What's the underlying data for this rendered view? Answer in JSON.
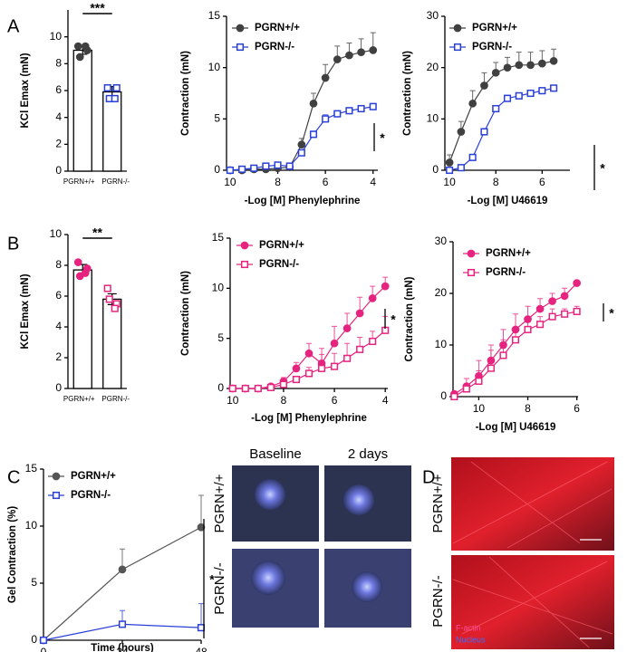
{
  "panel_labels": [
    "A",
    "B",
    "C",
    "D"
  ],
  "photos": {
    "columns": [
      "Baseline",
      "2 days"
    ],
    "rows": [
      "PGRN+/+",
      "PGRN-/-"
    ]
  },
  "staining": {
    "rows": [
      "PGRN+/+",
      "PGRN-/-"
    ],
    "legend": [
      "F-actin",
      "Nucleus"
    ]
  },
  "chart_data": [
    {
      "type": "bar",
      "ylabel": "KCl Emax (mN)",
      "categories": [
        "PGRN+/+",
        "PGRN-/-"
      ],
      "values": [
        9.0,
        5.9
      ],
      "errors": [
        0.3,
        0.4
      ],
      "points": [
        [
          9.3,
          9.0,
          8.5,
          9.3
        ],
        [
          6.2,
          6.2,
          5.4,
          5.4
        ]
      ],
      "point_colors": [
        "#404040",
        "#2a3fd6"
      ],
      "point_markers": [
        "circle",
        "square"
      ],
      "ylim": [
        0,
        12
      ],
      "yticks": [
        0,
        2,
        4,
        6,
        8,
        10
      ],
      "significance": "***"
    },
    {
      "type": "line",
      "xlabel": "-Log [M] Phenylephrine",
      "ylabel": "Contraction (mN)",
      "x": [
        10,
        9.5,
        9,
        8.5,
        8,
        7.5,
        7,
        6.5,
        6,
        5.5,
        5,
        4.5,
        4
      ],
      "series": [
        {
          "name": "PGRN+/+",
          "color": "#404040",
          "marker": "circle",
          "filled": true,
          "values": [
            0,
            0,
            0.1,
            0.1,
            0.2,
            0.3,
            2.5,
            6.5,
            9.0,
            10.8,
            11.2,
            11.5,
            11.7
          ],
          "errors": [
            0,
            0,
            0,
            0.1,
            0.1,
            0.3,
            0.6,
            1.0,
            1.3,
            1.3,
            1.2,
            1.3,
            1.7
          ]
        },
        {
          "name": "PGRN-/-",
          "color": "#2a3fd6",
          "marker": "square",
          "filled": false,
          "values": [
            0,
            0.1,
            0.2,
            0.4,
            0.5,
            0.4,
            1.7,
            3.5,
            5.0,
            5.5,
            5.8,
            6.0,
            6.2
          ],
          "errors": [
            0,
            0,
            0,
            0,
            0,
            0,
            0.2,
            0.3,
            0.4,
            0.3,
            0.3,
            0.3,
            0.3
          ]
        }
      ],
      "xlim": [
        10.15,
        3.8
      ],
      "xticks": [
        10,
        8,
        6,
        4
      ],
      "ylim": [
        0,
        15
      ],
      "yticks": [
        0,
        5,
        10,
        15
      ],
      "significance": "*"
    },
    {
      "type": "line",
      "xlabel": "-Log [M] U46619",
      "ylabel": "Contraction (mN)",
      "x": [
        10,
        9.5,
        9,
        8.5,
        8,
        7.5,
        7,
        6.5,
        6,
        5.5
      ],
      "series": [
        {
          "name": "PGRN+/+",
          "color": "#404040",
          "marker": "circle",
          "filled": true,
          "values": [
            1.5,
            7.5,
            13,
            16.5,
            19,
            20,
            20.5,
            20.5,
            20.8,
            21.3
          ],
          "errors": [
            1.5,
            2,
            2.5,
            2.5,
            2,
            2,
            2.5,
            2.5,
            2.5,
            2.3
          ]
        },
        {
          "name": "PGRN-/-",
          "color": "#2a3fd6",
          "marker": "square",
          "filled": false,
          "values": [
            0,
            0.5,
            2.5,
            7.5,
            12,
            14,
            14.5,
            15,
            15.5,
            16
          ],
          "errors": [
            0,
            0,
            0.3,
            0.5,
            0.5,
            0.6,
            0.5,
            0.5,
            0.5,
            0.5
          ]
        }
      ],
      "xlim": [
        10.2,
        4.8
      ],
      "xticks": [
        10,
        8,
        6
      ],
      "ylim": [
        0,
        30
      ],
      "yticks": [
        0,
        10,
        20,
        30
      ],
      "significance": "*"
    },
    {
      "type": "bar",
      "ylabel": "KCl Emax (mN)",
      "categories": [
        "PGRN+/+",
        "PGRN-/-"
      ],
      "values": [
        7.7,
        5.8
      ],
      "errors": [
        0.35,
        0.35
      ],
      "points": [
        [
          8.2,
          7.8,
          7.3,
          7.5
        ],
        [
          6.5,
          5.5,
          5.8,
          5.2
        ]
      ],
      "point_colors": [
        "#e6247f",
        "#e6247f"
      ],
      "point_markers": [
        "circle",
        "square"
      ],
      "ylim": [
        0,
        10
      ],
      "yticks": [
        0,
        2,
        4,
        6,
        8,
        10
      ],
      "significance": "**"
    },
    {
      "type": "line",
      "xlabel": "-Log [M] Phenylephrine",
      "ylabel": "Contraction (mN)",
      "x": [
        10,
        9.5,
        9,
        8.5,
        8,
        7.5,
        7,
        6.5,
        6,
        5.5,
        5,
        4.5,
        4
      ],
      "series": [
        {
          "name": "PGRN+/+",
          "color": "#e6247f",
          "marker": "circle",
          "filled": true,
          "values": [
            0,
            0,
            0,
            0.2,
            0.7,
            2,
            3.5,
            2.5,
            4.5,
            6,
            7.5,
            9,
            10.2
          ],
          "errors": [
            0,
            0,
            0,
            0.2,
            0.4,
            0.6,
            1.0,
            1.5,
            1.7,
            1.5,
            1.6,
            1.2,
            0.9
          ]
        },
        {
          "name": "PGRN-/-",
          "color": "#e6247f",
          "marker": "square",
          "filled": false,
          "values": [
            0,
            0,
            0,
            0.1,
            0.4,
            0.9,
            1.5,
            2,
            2.2,
            3,
            3.9,
            4.7,
            5.8
          ],
          "errors": [
            0,
            0,
            0,
            0.1,
            0.2,
            0.3,
            0.6,
            1.4,
            1.3,
            1.5,
            1.2,
            1.0,
            1.4
          ]
        }
      ],
      "xlim": [
        10.1,
        3.9
      ],
      "xticks": [
        10,
        8,
        6,
        4
      ],
      "ylim": [
        0,
        15
      ],
      "yticks": [
        0,
        5,
        10,
        15
      ],
      "significance": "*"
    },
    {
      "type": "line",
      "xlabel": "-Log [M] U46619",
      "ylabel": "Contraction (mN)",
      "x": [
        11,
        10.5,
        10,
        9.5,
        9,
        8.5,
        8,
        7.5,
        7,
        6.5,
        6
      ],
      "series": [
        {
          "name": "PGRN+/+",
          "color": "#e6247f",
          "marker": "circle",
          "filled": true,
          "values": [
            0.5,
            2,
            4,
            7,
            10,
            13,
            15,
            17,
            18.5,
            19.5,
            22
          ],
          "errors": [
            0.5,
            1.5,
            3,
            3,
            3,
            3,
            2.5,
            2,
            1.5,
            1.5,
            0
          ]
        },
        {
          "name": "PGRN-/-",
          "color": "#e6247f",
          "marker": "square",
          "filled": false,
          "values": [
            0,
            1.5,
            3,
            5.5,
            8,
            11,
            13,
            14,
            15.5,
            16,
            16.5
          ],
          "errors": [
            0,
            1,
            2,
            3.5,
            3,
            2,
            1.5,
            1.5,
            1.5,
            1,
            1
          ]
        }
      ],
      "xlim": [
        11.05,
        5.95
      ],
      "xticks": [
        10,
        8,
        6
      ],
      "ylim": [
        0,
        30
      ],
      "yticks": [
        0,
        10,
        20,
        30
      ],
      "significance": "*"
    },
    {
      "type": "line",
      "xlabel": "Time (hours)",
      "ylabel": "Gel Contraction (%)",
      "x": [
        0,
        24,
        48
      ],
      "series": [
        {
          "name": "PGRN+/+",
          "color": "#555555",
          "marker": "circle",
          "filled": true,
          "values": [
            0,
            6.2,
            9.9
          ],
          "errors": [
            0,
            1.8,
            2.8
          ]
        },
        {
          "name": "PGRN-/-",
          "color": "#2a3fd6",
          "marker": "square",
          "filled": false,
          "values": [
            0,
            1.4,
            1.1
          ],
          "errors": [
            0,
            1.2,
            2.1
          ]
        }
      ],
      "xlim": [
        0,
        48
      ],
      "xticks": [
        0,
        24,
        48
      ],
      "ylim": [
        0,
        15
      ],
      "yticks": [
        0,
        5,
        10,
        15
      ],
      "significance": "*"
    }
  ]
}
